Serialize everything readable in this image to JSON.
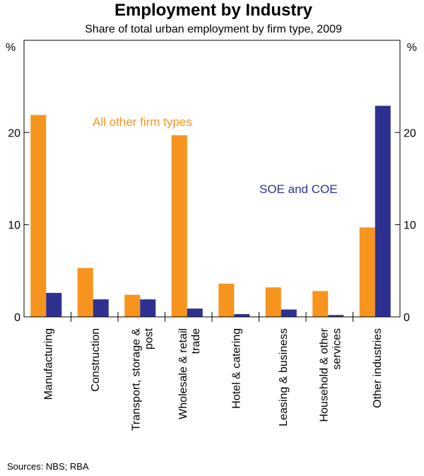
{
  "chart_data": {
    "type": "bar",
    "title": "Employment by Industry",
    "subtitle": "Share of total urban employment by firm type, 2009",
    "ylabel_left": "%",
    "ylabel_right": "%",
    "ylim": [
      0,
      30
    ],
    "yticks": [
      0,
      10,
      20
    ],
    "categories": [
      "Manufacturing",
      "Construction",
      "Transport, storage & post",
      "Wholesale & retail trade",
      "Hotel & catering",
      "Leasing & business",
      "Household & other services",
      "Other industries"
    ],
    "category_lines": [
      [
        "Manufacturing"
      ],
      [
        "Construction"
      ],
      [
        "Transport, storage &",
        "post"
      ],
      [
        "Wholesale & retail",
        "trade"
      ],
      [
        "Hotel & catering"
      ],
      [
        "Leasing & business"
      ],
      [
        "Household & other",
        "services"
      ],
      [
        "Other industries"
      ]
    ],
    "series": [
      {
        "name": "All other firm types",
        "color": "#f7941d",
        "values": [
          21.9,
          5.3,
          2.4,
          19.7,
          3.6,
          3.2,
          2.8,
          9.7
        ]
      },
      {
        "name": "SOE and COE",
        "color": "#2e3192",
        "values": [
          2.6,
          1.9,
          1.9,
          0.9,
          0.3,
          0.8,
          0.2,
          22.9
        ]
      }
    ],
    "annotations": {
      "orange": "All other firm types",
      "blue": "SOE and COE"
    },
    "source": "Sources: NBS; RBA"
  }
}
